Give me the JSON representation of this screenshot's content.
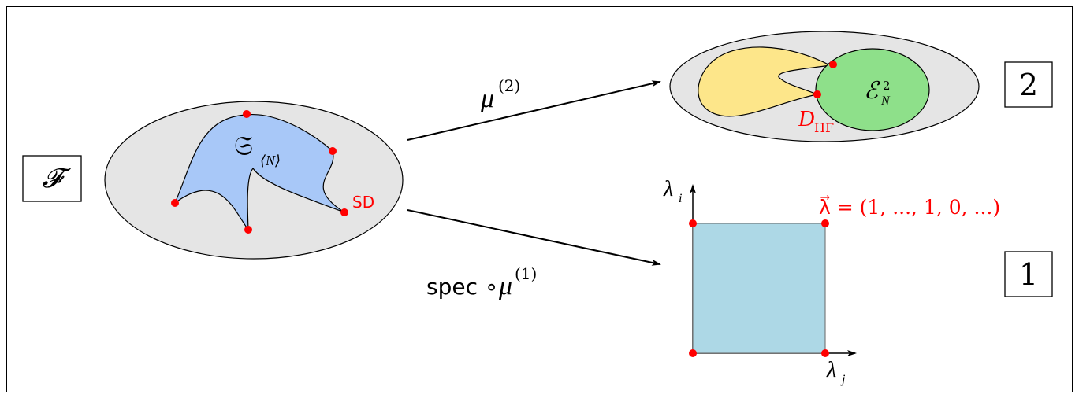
{
  "boxes": {
    "fock_label": "𝓕",
    "two_rdm_label": "2",
    "one_rdm_label": "1"
  },
  "left_set": {
    "label_base": "𝔖",
    "label_sub": "⟨N⟩",
    "sd_label": "SD"
  },
  "arrows": {
    "top_label_base": "μ",
    "top_label_sup": "(2)",
    "bottom_label_prefix": "spec ∘ ",
    "bottom_label_base": "μ",
    "bottom_label_sup": "(1)"
  },
  "top_right": {
    "green_label_base": "ℰ",
    "green_label_sub": "N",
    "green_label_sup": "2",
    "hf_label_base": "D",
    "hf_label_sub": "HF"
  },
  "square_plot": {
    "y_axis_base": "λ",
    "y_axis_sub": "i",
    "x_axis_base": "λ",
    "x_axis_sub": "j",
    "lambda_label": "λ⃗ = (1, ..., 1, 0, ...)"
  },
  "colors": {
    "gray_ellipse": "#e5e5e5",
    "blue_region": "#a8c8f8",
    "yellow_region": "#fde68a",
    "green_region": "#8ee08a",
    "square_fill": "#add8e6",
    "red_points": "#ff0000",
    "black": "#000000"
  }
}
